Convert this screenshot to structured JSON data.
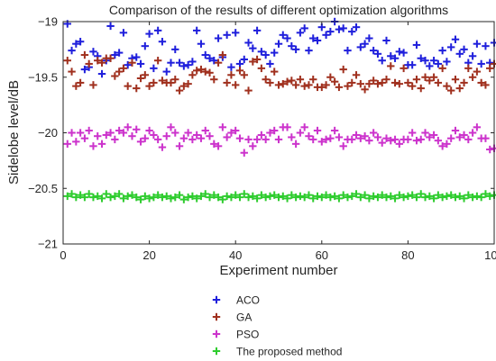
{
  "chart_data": {
    "type": "scatter",
    "title": "Comparison of the results of different optimization algorithms",
    "xlabel": "Experiment number",
    "ylabel": "Sidelobe level/dB",
    "xlim": [
      0,
      100
    ],
    "ylim": [
      -21,
      -19
    ],
    "xticks": [
      0,
      20,
      40,
      60,
      80,
      100
    ],
    "yticks": [
      -19,
      -19.5,
      -20,
      -20.5,
      -21
    ],
    "xtick_labels": [
      "0",
      "20",
      "40",
      "60",
      "80",
      "100"
    ],
    "ytick_labels": [
      "−19",
      "−19.5",
      "−20",
      "−20.5",
      "−21"
    ],
    "marker": "plus",
    "legend_position": "below",
    "series": [
      {
        "name": "ACO",
        "color": "#1f1fdc",
        "x": [
          1,
          2,
          3,
          4,
          5,
          6,
          7,
          8,
          9,
          10,
          11,
          12,
          13,
          14,
          15,
          16,
          17,
          18,
          19,
          20,
          21,
          22,
          23,
          24,
          25,
          26,
          27,
          28,
          29,
          30,
          31,
          32,
          33,
          34,
          35,
          36,
          37,
          38,
          39,
          40,
          41,
          42,
          43,
          44,
          45,
          46,
          47,
          48,
          49,
          50,
          51,
          52,
          53,
          54,
          55,
          56,
          57,
          58,
          59,
          60,
          61,
          62,
          63,
          64,
          65,
          66,
          67,
          68,
          69,
          70,
          71,
          72,
          73,
          74,
          75,
          76,
          77,
          78,
          79,
          80,
          81,
          82,
          83,
          84,
          85,
          86,
          87,
          88,
          89,
          90,
          91,
          92,
          93,
          94,
          95,
          96,
          97,
          98,
          99,
          100
        ],
        "y": [
          -19.02,
          -19.26,
          -19.2,
          -19.18,
          -19.43,
          -19.41,
          -19.27,
          -19.31,
          -19.47,
          -19.35,
          -19.04,
          -19.3,
          -19.28,
          -19.1,
          -19.39,
          -19.33,
          -19.32,
          -19.38,
          -19.22,
          -19.11,
          -19.42,
          -19.08,
          -19.18,
          -19.45,
          -19.37,
          -19.25,
          -19.37,
          -19.4,
          -19.39,
          -19.36,
          -19.08,
          -19.2,
          -19.3,
          -19.33,
          -19.35,
          -19.15,
          -19.32,
          -19.12,
          -19.41,
          -19.1,
          -19.38,
          -19.34,
          -19.19,
          -19.24,
          -19.08,
          -19.27,
          -19.3,
          -19.38,
          -19.28,
          -19.2,
          -19.12,
          -19.15,
          -19.22,
          -19.25,
          -19.1,
          -19.06,
          -19.26,
          -19.15,
          -19.17,
          -19.05,
          -19.12,
          -19.09,
          -19.0,
          -19.07,
          -19.06,
          -19.26,
          -19.09,
          -19.05,
          -19.23,
          -19.2,
          -19.15,
          -19.26,
          -19.29,
          -19.35,
          -19.17,
          -19.31,
          -19.33,
          -19.27,
          -19.28,
          -19.39,
          -19.39,
          -19.21,
          -19.33,
          -19.35,
          -19.4,
          -19.35,
          -19.38,
          -19.26,
          -19.36,
          -19.23,
          -19.16,
          -19.29,
          -19.25,
          -19.37,
          -19.31,
          -19.2,
          -19.38,
          -19.22,
          -19.37,
          -19.19
        ]
      },
      {
        "name": "GA",
        "color": "#a0301e",
        "x": [
          1,
          2,
          3,
          4,
          5,
          6,
          7,
          8,
          9,
          10,
          11,
          12,
          13,
          14,
          15,
          16,
          17,
          18,
          19,
          20,
          21,
          22,
          23,
          24,
          25,
          26,
          27,
          28,
          29,
          30,
          31,
          32,
          33,
          34,
          35,
          36,
          37,
          38,
          39,
          40,
          41,
          42,
          43,
          44,
          45,
          46,
          47,
          48,
          49,
          50,
          51,
          52,
          53,
          54,
          55,
          56,
          57,
          58,
          59,
          60,
          61,
          62,
          63,
          64,
          65,
          66,
          67,
          68,
          69,
          70,
          71,
          72,
          73,
          74,
          75,
          76,
          77,
          78,
          79,
          80,
          81,
          82,
          83,
          84,
          85,
          86,
          87,
          88,
          89,
          90,
          91,
          92,
          93,
          94,
          95,
          96,
          97,
          98,
          99,
          100
        ],
        "y": [
          -19.35,
          -19.45,
          -19.58,
          -19.55,
          -19.3,
          -19.38,
          -19.57,
          -19.35,
          -19.37,
          -19.33,
          -19.33,
          -19.49,
          -19.45,
          -19.42,
          -19.58,
          -19.37,
          -19.6,
          -19.51,
          -19.48,
          -19.58,
          -19.55,
          -19.35,
          -19.53,
          -19.55,
          -19.55,
          -19.52,
          -19.62,
          -19.58,
          -19.56,
          -19.48,
          -19.44,
          -19.43,
          -19.45,
          -19.46,
          -19.52,
          -19.37,
          -19.3,
          -19.55,
          -19.48,
          -19.57,
          -19.44,
          -19.48,
          -19.62,
          -19.36,
          -19.34,
          -19.42,
          -19.52,
          -19.55,
          -19.45,
          -19.57,
          -19.56,
          -19.54,
          -19.53,
          -19.57,
          -19.52,
          -19.58,
          -19.57,
          -19.52,
          -19.59,
          -19.59,
          -19.57,
          -19.5,
          -19.54,
          -19.59,
          -19.43,
          -19.58,
          -19.55,
          -19.48,
          -19.56,
          -19.61,
          -19.56,
          -19.53,
          -19.56,
          -19.55,
          -19.52,
          -19.4,
          -19.55,
          -19.56,
          -19.42,
          -19.55,
          -19.58,
          -19.52,
          -19.6,
          -19.5,
          -19.53,
          -19.5,
          -19.55,
          -19.42,
          -19.58,
          -19.62,
          -19.52,
          -19.6,
          -19.55,
          -19.42,
          -19.5,
          -19.45,
          -19.55,
          -19.57,
          -19.42,
          -19.38
        ]
      },
      {
        "name": "PSO",
        "color": "#cc33cc",
        "x": [
          1,
          2,
          3,
          4,
          5,
          6,
          7,
          8,
          9,
          10,
          11,
          12,
          13,
          14,
          15,
          16,
          17,
          18,
          19,
          20,
          21,
          22,
          23,
          24,
          25,
          26,
          27,
          28,
          29,
          30,
          31,
          32,
          33,
          34,
          35,
          36,
          37,
          38,
          39,
          40,
          41,
          42,
          43,
          44,
          45,
          46,
          47,
          48,
          49,
          50,
          51,
          52,
          53,
          54,
          55,
          56,
          57,
          58,
          59,
          60,
          61,
          62,
          63,
          64,
          65,
          66,
          67,
          68,
          69,
          70,
          71,
          72,
          73,
          74,
          75,
          76,
          77,
          78,
          79,
          80,
          81,
          82,
          83,
          84,
          85,
          86,
          87,
          88,
          89,
          90,
          91,
          92,
          93,
          94,
          95,
          96,
          97,
          98,
          99,
          100
        ],
        "y": [
          -20.1,
          -20.0,
          -20.08,
          -20.0,
          -20.05,
          -19.98,
          -20.12,
          -20.03,
          -20.1,
          -20.02,
          -20.0,
          -20.06,
          -19.98,
          -20.0,
          -19.95,
          -20.03,
          -19.97,
          -20.08,
          -20.05,
          -19.98,
          -20.02,
          -20.06,
          -20.13,
          -20.03,
          -19.95,
          -20.0,
          -20.12,
          -20.05,
          -20.0,
          -20.06,
          -20.02,
          -20.05,
          -19.98,
          -20.03,
          -20.1,
          -20.12,
          -19.95,
          -20.04,
          -20.0,
          -19.98,
          -20.05,
          -20.18,
          -20.06,
          -20.12,
          -20.06,
          -20.02,
          -20.06,
          -20.0,
          -19.98,
          -20.06,
          -19.95,
          -19.95,
          -20.04,
          -20.1,
          -20.0,
          -19.95,
          -20.03,
          -20.06,
          -19.98,
          -20.08,
          -20.06,
          -20.05,
          -19.98,
          -20.04,
          -20.12,
          -20.06,
          -20.06,
          -20.02,
          -20.05,
          -20.03,
          -20.07,
          -20.0,
          -20.04,
          -20.09,
          -20.05,
          -20.07,
          -20.06,
          -20.1,
          -20.06,
          -20.06,
          -20.0,
          -20.07,
          -20.06,
          -20.0,
          -20.04,
          -20.02,
          -20.07,
          -20.12,
          -20.1,
          -20.05,
          -19.98,
          -20.04,
          -20.02,
          -20.06,
          -20.0,
          -19.95,
          -20.05,
          -20.05,
          -20.15,
          -20.14
        ]
      },
      {
        "name": "The proposed method",
        "color": "#2ecc2e",
        "x": [
          1,
          2,
          3,
          4,
          5,
          6,
          7,
          8,
          9,
          10,
          11,
          12,
          13,
          14,
          15,
          16,
          17,
          18,
          19,
          20,
          21,
          22,
          23,
          24,
          25,
          26,
          27,
          28,
          29,
          30,
          31,
          32,
          33,
          34,
          35,
          36,
          37,
          38,
          39,
          40,
          41,
          42,
          43,
          44,
          45,
          46,
          47,
          48,
          49,
          50,
          51,
          52,
          53,
          54,
          55,
          56,
          57,
          58,
          59,
          60,
          61,
          62,
          63,
          64,
          65,
          66,
          67,
          68,
          69,
          70,
          71,
          72,
          73,
          74,
          75,
          76,
          77,
          78,
          79,
          80,
          81,
          82,
          83,
          84,
          85,
          86,
          87,
          88,
          89,
          90,
          91,
          92,
          93,
          94,
          95,
          96,
          97,
          98,
          99,
          100
        ],
        "y": [
          -20.57,
          -20.55,
          -20.58,
          -20.56,
          -20.58,
          -20.55,
          -20.58,
          -20.57,
          -20.59,
          -20.55,
          -20.58,
          -20.57,
          -20.55,
          -20.59,
          -20.57,
          -20.56,
          -20.58,
          -20.6,
          -20.57,
          -20.59,
          -20.58,
          -20.56,
          -20.58,
          -20.57,
          -20.59,
          -20.58,
          -20.56,
          -20.6,
          -20.58,
          -20.57,
          -20.59,
          -20.57,
          -20.55,
          -20.58,
          -20.56,
          -20.58,
          -20.6,
          -20.57,
          -20.58,
          -20.56,
          -20.58,
          -20.55,
          -20.58,
          -20.57,
          -20.59,
          -20.56,
          -20.58,
          -20.57,
          -20.56,
          -20.58,
          -20.57,
          -20.59,
          -20.56,
          -20.58,
          -20.57,
          -20.58,
          -20.56,
          -20.59,
          -20.57,
          -20.58,
          -20.56,
          -20.58,
          -20.57,
          -20.59,
          -20.56,
          -20.58,
          -20.57,
          -20.55,
          -20.58,
          -20.56,
          -20.59,
          -20.57,
          -20.58,
          -20.56,
          -20.58,
          -20.57,
          -20.59,
          -20.56,
          -20.58,
          -20.57,
          -20.56,
          -20.58,
          -20.55,
          -20.58,
          -20.57,
          -20.59,
          -20.56,
          -20.58,
          -20.57,
          -20.56,
          -20.58,
          -20.57,
          -20.59,
          -20.56,
          -20.58,
          -20.57,
          -20.58,
          -20.55,
          -20.57,
          -20.56
        ]
      }
    ]
  }
}
